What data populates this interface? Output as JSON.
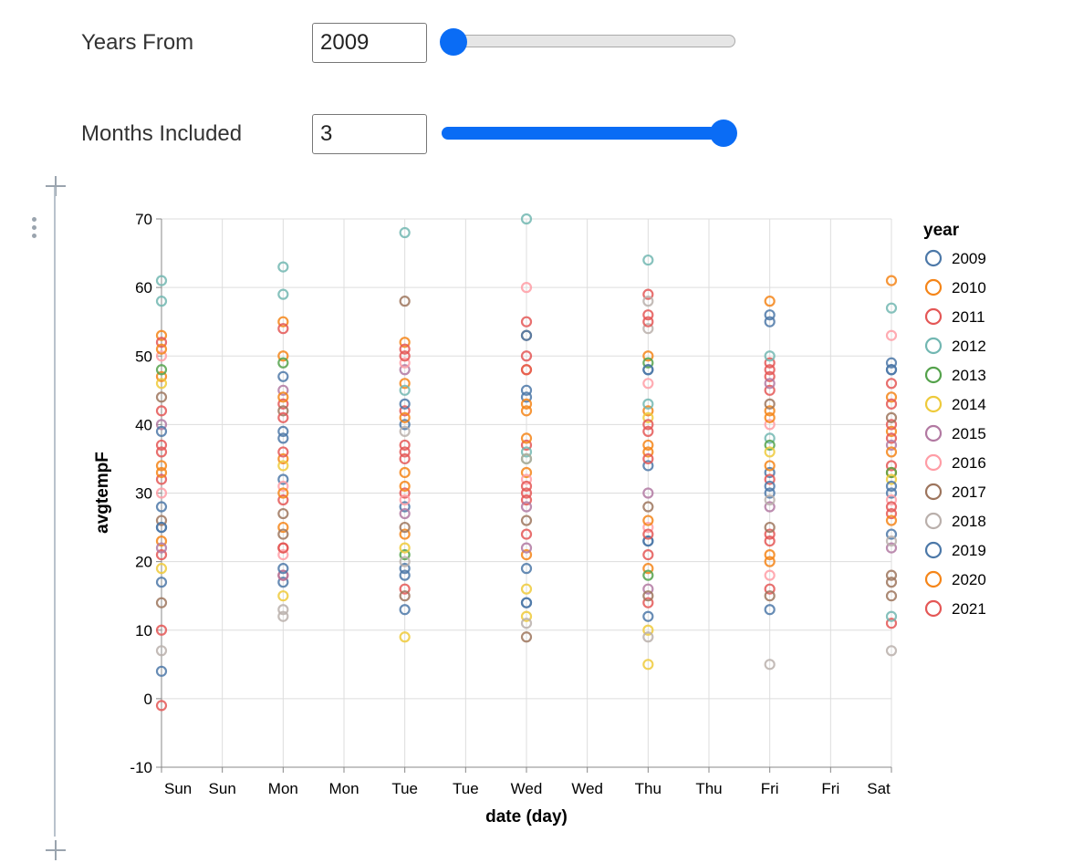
{
  "controls": {
    "years_from": {
      "label": "Years From",
      "value": "2009",
      "slider_fraction": 0.0
    },
    "months_included": {
      "label": "Months Included",
      "value": "3",
      "slider_fraction": 1.0
    }
  },
  "colors": {
    "accent": "#0a6cf5",
    "2009": "#4c78a8",
    "2010": "#f58518",
    "2011": "#e45756",
    "2012": "#72b7b2",
    "2013": "#54a24b",
    "2014": "#eeca3b",
    "2015": "#b279a2",
    "2016": "#ff9da6",
    "2017": "#9d755d",
    "2018": "#bab0ac",
    "2019": "#4c78a8",
    "2020": "#f58518",
    "2021": "#e45756"
  },
  "chart_data": {
    "type": "scatter",
    "title": "",
    "xlabel": "date (day)",
    "ylabel": "avgtempF",
    "x_ticks": [
      "Sun",
      "Sun",
      "Mon",
      "Mon",
      "Tue",
      "Tue",
      "Wed",
      "Wed",
      "Thu",
      "Thu",
      "Fri",
      "Fri",
      "Sat"
    ],
    "y_ticks": [
      70,
      60,
      50,
      40,
      30,
      20,
      10,
      0,
      -10
    ],
    "ylim": [
      -10,
      70
    ],
    "grid": true,
    "legend_title": "year",
    "legend_position": "right",
    "series": [
      {
        "name": "2009",
        "points": [
          [
            "Sun",
            4
          ],
          [
            "Sun",
            17
          ],
          [
            "Sun",
            25
          ],
          [
            "Sun",
            28
          ],
          [
            "Mon",
            17
          ],
          [
            "Mon",
            32
          ],
          [
            "Mon",
            38
          ],
          [
            "Mon",
            47
          ],
          [
            "Tue",
            13
          ],
          [
            "Tue",
            19
          ],
          [
            "Tue",
            28
          ],
          [
            "Tue",
            40
          ],
          [
            "Wed",
            14
          ],
          [
            "Wed",
            19
          ],
          [
            "Wed",
            44
          ],
          [
            "Wed",
            45
          ],
          [
            "Thu",
            12
          ],
          [
            "Thu",
            23
          ],
          [
            "Thu",
            34
          ],
          [
            "Thu",
            48
          ],
          [
            "Fri",
            13
          ],
          [
            "Fri",
            30
          ],
          [
            "Fri",
            33
          ],
          [
            "Fri",
            56
          ],
          [
            "Sat",
            24
          ],
          [
            "Sat",
            30
          ],
          [
            "Sat",
            48
          ],
          [
            "Sat",
            49
          ]
        ]
      },
      {
        "name": "2010",
        "points": [
          [
            "Sun",
            23
          ],
          [
            "Sun",
            34
          ],
          [
            "Sun",
            47
          ],
          [
            "Sun",
            53
          ],
          [
            "Mon",
            25
          ],
          [
            "Mon",
            35
          ],
          [
            "Mon",
            50
          ],
          [
            "Mon",
            55
          ],
          [
            "Tue",
            24
          ],
          [
            "Tue",
            33
          ],
          [
            "Tue",
            46
          ],
          [
            "Tue",
            52
          ],
          [
            "Wed",
            21
          ],
          [
            "Wed",
            33
          ],
          [
            "Wed",
            43
          ],
          [
            "Wed",
            48
          ],
          [
            "Thu",
            19
          ],
          [
            "Thu",
            36
          ],
          [
            "Thu",
            42
          ],
          [
            "Thu",
            50
          ],
          [
            "Fri",
            21
          ],
          [
            "Fri",
            34
          ],
          [
            "Fri",
            42
          ],
          [
            "Fri",
            58
          ],
          [
            "Sat",
            33
          ],
          [
            "Sat",
            39
          ],
          [
            "Sat",
            44
          ],
          [
            "Sat",
            61
          ]
        ]
      },
      {
        "name": "2011",
        "points": [
          [
            "Sun",
            -1
          ],
          [
            "Sun",
            10
          ],
          [
            "Sun",
            21
          ],
          [
            "Sun",
            32
          ],
          [
            "Sun",
            37
          ],
          [
            "Sun",
            52
          ],
          [
            "Mon",
            18
          ],
          [
            "Mon",
            22
          ],
          [
            "Mon",
            29
          ],
          [
            "Mon",
            36
          ],
          [
            "Mon",
            43
          ],
          [
            "Mon",
            54
          ],
          [
            "Tue",
            16
          ],
          [
            "Tue",
            30
          ],
          [
            "Tue",
            35
          ],
          [
            "Tue",
            37
          ],
          [
            "Tue",
            42
          ],
          [
            "Tue",
            51
          ],
          [
            "Wed",
            29
          ],
          [
            "Wed",
            30
          ],
          [
            "Wed",
            37
          ],
          [
            "Wed",
            48
          ],
          [
            "Wed",
            50
          ],
          [
            "Wed",
            55
          ],
          [
            "Thu",
            14
          ],
          [
            "Thu",
            21
          ],
          [
            "Thu",
            35
          ],
          [
            "Thu",
            39
          ],
          [
            "Thu",
            56
          ],
          [
            "Thu",
            59
          ],
          [
            "Fri",
            16
          ],
          [
            "Fri",
            24
          ],
          [
            "Fri",
            32
          ],
          [
            "Fri",
            45
          ],
          [
            "Fri",
            47
          ],
          [
            "Fri",
            49
          ],
          [
            "Sat",
            11
          ],
          [
            "Sat",
            27
          ],
          [
            "Sat",
            34
          ],
          [
            "Sat",
            38
          ],
          [
            "Sat",
            40
          ],
          [
            "Sat",
            46
          ]
        ]
      },
      {
        "name": "2012",
        "points": [
          [
            "Sun",
            58
          ],
          [
            "Sun",
            61
          ],
          [
            "Mon",
            59
          ],
          [
            "Mon",
            63
          ],
          [
            "Tue",
            45
          ],
          [
            "Tue",
            68
          ],
          [
            "Wed",
            36
          ],
          [
            "Wed",
            70
          ],
          [
            "Thu",
            43
          ],
          [
            "Thu",
            64
          ],
          [
            "Fri",
            38
          ],
          [
            "Fri",
            50
          ],
          [
            "Sat",
            12
          ],
          [
            "Sat",
            57
          ]
        ]
      },
      {
        "name": "2013",
        "points": [
          [
            "Sun",
            48
          ],
          [
            "Mon",
            49
          ],
          [
            "Tue",
            21
          ],
          [
            "Wed",
            35
          ],
          [
            "Thu",
            18
          ],
          [
            "Thu",
            49
          ],
          [
            "Fri",
            37
          ],
          [
            "Sat",
            33
          ]
        ]
      },
      {
        "name": "2014",
        "points": [
          [
            "Sun",
            19
          ],
          [
            "Sun",
            46
          ],
          [
            "Mon",
            15
          ],
          [
            "Mon",
            34
          ],
          [
            "Tue",
            9
          ],
          [
            "Tue",
            22
          ],
          [
            "Wed",
            12
          ],
          [
            "Wed",
            16
          ],
          [
            "Thu",
            5
          ],
          [
            "Thu",
            10
          ],
          [
            "Thu",
            41
          ],
          [
            "Fri",
            36
          ],
          [
            "Sat",
            32
          ]
        ]
      },
      {
        "name": "2015",
        "points": [
          [
            "Sun",
            22
          ],
          [
            "Sun",
            40
          ],
          [
            "Mon",
            18
          ],
          [
            "Mon",
            45
          ],
          [
            "Tue",
            27
          ],
          [
            "Tue",
            48
          ],
          [
            "Wed",
            22
          ],
          [
            "Wed",
            28
          ],
          [
            "Thu",
            16
          ],
          [
            "Thu",
            30
          ],
          [
            "Fri",
            28
          ],
          [
            "Fri",
            46
          ],
          [
            "Sat",
            22
          ],
          [
            "Sat",
            37
          ]
        ]
      },
      {
        "name": "2016",
        "points": [
          [
            "Sun",
            30
          ],
          [
            "Sun",
            50
          ],
          [
            "Mon",
            21
          ],
          [
            "Mon",
            31
          ],
          [
            "Tue",
            29
          ],
          [
            "Tue",
            49
          ],
          [
            "Wed",
            32
          ],
          [
            "Wed",
            60
          ],
          [
            "Thu",
            25
          ],
          [
            "Thu",
            46
          ],
          [
            "Fri",
            18
          ],
          [
            "Fri",
            40
          ],
          [
            "Sat",
            29
          ],
          [
            "Sat",
            53
          ]
        ]
      },
      {
        "name": "2017",
        "points": [
          [
            "Sun",
            14
          ],
          [
            "Sun",
            26
          ],
          [
            "Sun",
            44
          ],
          [
            "Mon",
            24
          ],
          [
            "Mon",
            27
          ],
          [
            "Mon",
            42
          ],
          [
            "Tue",
            15
          ],
          [
            "Tue",
            25
          ],
          [
            "Tue",
            58
          ],
          [
            "Wed",
            9
          ],
          [
            "Wed",
            26
          ],
          [
            "Wed",
            53
          ],
          [
            "Thu",
            15
          ],
          [
            "Thu",
            28
          ],
          [
            "Fri",
            15
          ],
          [
            "Fri",
            25
          ],
          [
            "Fri",
            43
          ],
          [
            "Sat",
            15
          ],
          [
            "Sat",
            17
          ],
          [
            "Sat",
            18
          ],
          [
            "Sat",
            41
          ]
        ]
      },
      {
        "name": "2018",
        "points": [
          [
            "Sun",
            7
          ],
          [
            "Mon",
            12
          ],
          [
            "Mon",
            13
          ],
          [
            "Tue",
            20
          ],
          [
            "Tue",
            39
          ],
          [
            "Wed",
            11
          ],
          [
            "Wed",
            35
          ],
          [
            "Thu",
            9
          ],
          [
            "Thu",
            54
          ],
          [
            "Thu",
            58
          ],
          [
            "Fri",
            5
          ],
          [
            "Fri",
            29
          ],
          [
            "Sat",
            7
          ],
          [
            "Sat",
            23
          ]
        ]
      },
      {
        "name": "2019",
        "points": [
          [
            "Sun",
            25
          ],
          [
            "Sun",
            39
          ],
          [
            "Mon",
            19
          ],
          [
            "Mon",
            39
          ],
          [
            "Tue",
            18
          ],
          [
            "Tue",
            43
          ],
          [
            "Wed",
            14
          ],
          [
            "Wed",
            53
          ],
          [
            "Thu",
            23
          ],
          [
            "Thu",
            48
          ],
          [
            "Fri",
            31
          ],
          [
            "Fri",
            55
          ],
          [
            "Sat",
            31
          ],
          [
            "Sat",
            48
          ]
        ]
      },
      {
        "name": "2020",
        "points": [
          [
            "Sun",
            33
          ],
          [
            "Sun",
            51
          ],
          [
            "Mon",
            30
          ],
          [
            "Mon",
            44
          ],
          [
            "Tue",
            31
          ],
          [
            "Tue",
            41
          ],
          [
            "Wed",
            38
          ],
          [
            "Wed",
            42
          ],
          [
            "Thu",
            26
          ],
          [
            "Thu",
            37
          ],
          [
            "Fri",
            20
          ],
          [
            "Fri",
            41
          ],
          [
            "Sat",
            26
          ],
          [
            "Sat",
            36
          ]
        ]
      },
      {
        "name": "2021",
        "points": [
          [
            "Sun",
            36
          ],
          [
            "Sun",
            42
          ],
          [
            "Mon",
            22
          ],
          [
            "Mon",
            41
          ],
          [
            "Tue",
            36
          ],
          [
            "Tue",
            50
          ],
          [
            "Wed",
            24
          ],
          [
            "Wed",
            31
          ],
          [
            "Thu",
            24
          ],
          [
            "Thu",
            40
          ],
          [
            "Thu",
            55
          ],
          [
            "Fri",
            23
          ],
          [
            "Fri",
            48
          ],
          [
            "Sat",
            28
          ],
          [
            "Sat",
            43
          ]
        ]
      }
    ]
  }
}
